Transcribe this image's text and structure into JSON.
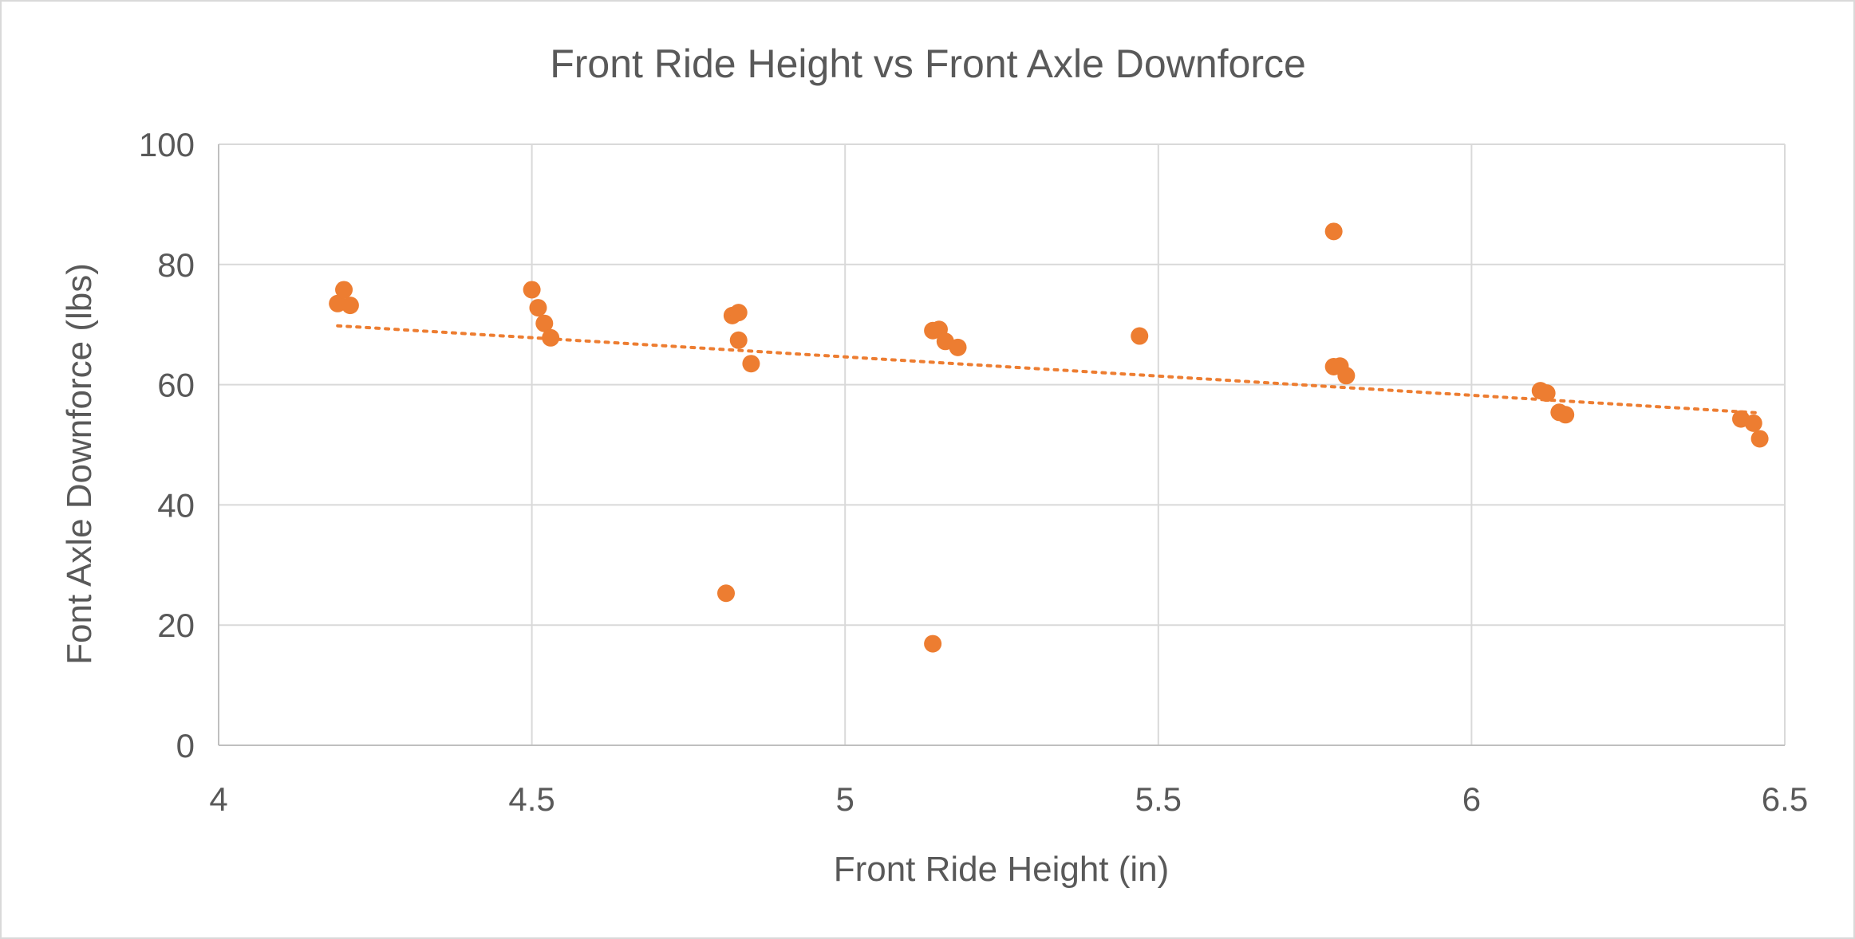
{
  "chart_data": {
    "type": "scatter",
    "title": "Front Ride Height vs Front Axle Downforce",
    "xlabel": "Front Ride Height (in)",
    "ylabel": "Font Axle Downforce (lbs)",
    "xlim": [
      4,
      6.5
    ],
    "ylim": [
      0,
      100
    ],
    "x_ticks": [
      "4",
      "4.5",
      "5",
      "5.5",
      "6",
      "6.5"
    ],
    "y_ticks": [
      "0",
      "20",
      "40",
      "60",
      "80",
      "100"
    ],
    "grid": true,
    "legend": "none",
    "marker_color": "#ed7d31",
    "trendline": {
      "type": "linear",
      "style": "dotted",
      "color": "#ed7d31",
      "x": [
        4.19,
        6.46
      ],
      "y": [
        69.8,
        55.3
      ]
    },
    "series": [
      {
        "points": [
          [
            4.19,
            73.5
          ],
          [
            4.2,
            75.8
          ],
          [
            4.21,
            73.2
          ],
          [
            4.5,
            75.8
          ],
          [
            4.51,
            72.8
          ],
          [
            4.52,
            70.2
          ],
          [
            4.53,
            67.8
          ],
          [
            4.81,
            25.3
          ],
          [
            4.82,
            71.5
          ],
          [
            4.83,
            72.0
          ],
          [
            4.83,
            67.4
          ],
          [
            4.85,
            63.5
          ],
          [
            5.14,
            69.0
          ],
          [
            5.15,
            69.2
          ],
          [
            5.16,
            67.2
          ],
          [
            5.18,
            66.2
          ],
          [
            5.14,
            16.9
          ],
          [
            5.47,
            68.1
          ],
          [
            5.78,
            85.5
          ],
          [
            5.78,
            63.0
          ],
          [
            5.79,
            63.1
          ],
          [
            5.8,
            61.5
          ],
          [
            6.11,
            59.0
          ],
          [
            6.12,
            58.6
          ],
          [
            6.14,
            55.4
          ],
          [
            6.15,
            55.0
          ],
          [
            6.43,
            54.3
          ],
          [
            6.45,
            53.6
          ],
          [
            6.46,
            51.0
          ]
        ]
      }
    ]
  }
}
